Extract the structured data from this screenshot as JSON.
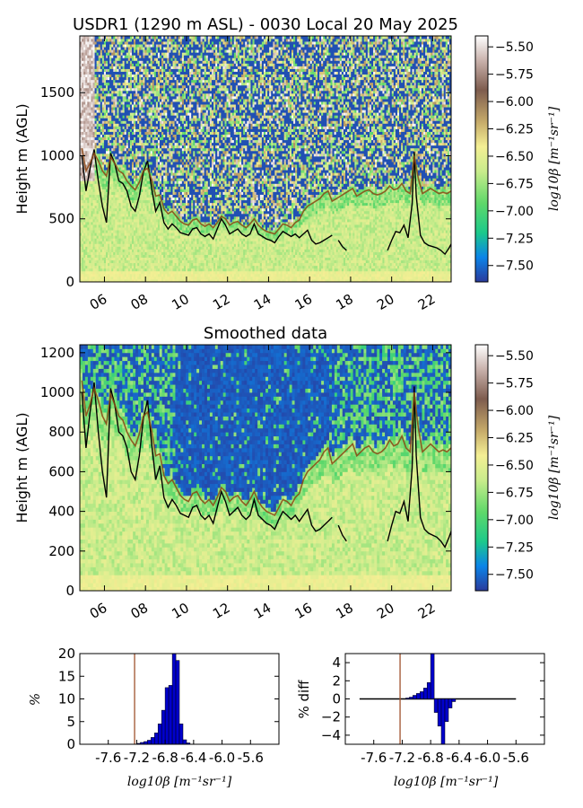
{
  "chart_data": [
    {
      "type": "heatmap",
      "title": "USDR1 (1290 m ASL) - 0030 Local 20 May 2025",
      "ylabel": "Height m (AGL)",
      "xlabel": "",
      "x_ticks": [
        "06",
        "08",
        "10",
        "12",
        "14",
        "16",
        "18",
        "20",
        "22"
      ],
      "x_tick_hours": [
        6,
        8,
        10,
        12,
        14,
        16,
        18,
        20,
        22
      ],
      "xlim": [
        4.8,
        22.9
      ],
      "ylim": [
        0,
        1950
      ],
      "y_ticks": [
        0,
        500,
        1000,
        1500
      ],
      "colorbar_label": "log10β [m⁻¹sr⁻¹]",
      "colorbar_ticks": [
        "−5.50",
        "−5.75",
        "−6.00",
        "−6.25",
        "−6.50",
        "−6.75",
        "−7.00",
        "−7.25",
        "−7.50"
      ],
      "clim": [
        -7.65,
        -5.4
      ],
      "series": [
        {
          "name": "",
          "color": "#000000",
          "x": [
            4.9,
            5.1,
            5.3,
            5.5,
            5.7,
            5.9,
            6.1,
            6.3,
            6.5,
            6.7,
            6.9,
            7.1,
            7.3,
            7.5,
            7.7,
            7.9,
            8.1,
            8.3,
            8.5,
            8.7,
            8.9,
            9.1,
            9.3,
            9.5,
            9.7,
            9.9,
            10.1,
            10.3,
            10.5,
            10.7,
            10.9,
            11.1,
            11.3,
            11.5,
            11.7,
            11.9,
            12.1,
            12.3,
            12.5,
            12.7,
            12.9,
            13.1,
            13.3,
            13.5,
            13.7,
            13.9,
            14.1,
            14.3,
            14.5,
            14.7,
            14.9,
            15.1,
            15.3,
            15.5,
            15.7,
            15.9,
            16.1,
            16.3,
            16.5,
            16.7,
            16.9,
            17.1
          ],
          "y": [
            1000,
            720,
            900,
            1050,
            800,
            600,
            470,
            1020,
            940,
            800,
            780,
            720,
            600,
            560,
            680,
            870,
            960,
            740,
            560,
            630,
            470,
            420,
            460,
            430,
            390,
            380,
            370,
            420,
            430,
            380,
            360,
            380,
            340,
            420,
            500,
            450,
            380,
            400,
            420,
            380,
            360,
            380,
            460,
            380,
            360,
            340,
            330,
            310,
            360,
            400,
            380,
            360,
            380,
            350,
            380,
            410,
            330,
            300,
            310,
            330,
            350,
            370
          ]
        },
        {
          "name": "",
          "color": "#000000",
          "x": [
            17.4,
            17.6,
            17.8
          ],
          "y": [
            330,
            280,
            250
          ]
        },
        {
          "name": "",
          "color": "#000000",
          "x": [
            19.8,
            20.0,
            20.2,
            20.4,
            20.6,
            20.8,
            21.0,
            21.1,
            21.2,
            21.4,
            21.6,
            21.8,
            22.0,
            22.2,
            22.4,
            22.6,
            22.8,
            23.0
          ],
          "y": [
            250,
            330,
            400,
            390,
            450,
            350,
            620,
            1030,
            680,
            370,
            310,
            290,
            280,
            270,
            250,
            220,
            270,
            330
          ]
        },
        {
          "name": "",
          "color": "#8b4513",
          "x": [
            4.9,
            5.1,
            5.3,
            5.5,
            5.7,
            5.9,
            6.1,
            6.3,
            6.5,
            6.7,
            6.9,
            7.1,
            7.3,
            7.5,
            7.7,
            7.9,
            8.1,
            8.3,
            8.5,
            8.7,
            8.9,
            9.1,
            9.3,
            9.5,
            9.7,
            9.9,
            10.1,
            10.3,
            10.5,
            10.7,
            10.9,
            11.1,
            11.3,
            11.5,
            11.7,
            11.9,
            12.1,
            12.3,
            12.5,
            12.7,
            12.9,
            13.1,
            13.3,
            13.5,
            13.7,
            13.9,
            14.1,
            14.3,
            14.5,
            14.7,
            14.9,
            15.1,
            15.3,
            15.5,
            15.7,
            15.9,
            16.1,
            16.3,
            16.5,
            16.7,
            16.9,
            17.1,
            17.3,
            17.5,
            17.7,
            17.9,
            18.1,
            18.3,
            18.5,
            18.7,
            18.9,
            19.1,
            19.3,
            19.5,
            19.7,
            19.9,
            20.1,
            20.3,
            20.5,
            20.7,
            20.9,
            21.1,
            21.3,
            21.5,
            21.7,
            21.9,
            22.1,
            22.3,
            22.5,
            22.7,
            22.9
          ],
          "y": [
            1060,
            880,
            940,
            1020,
            960,
            880,
            840,
            990,
            940,
            880,
            860,
            800,
            760,
            730,
            790,
            880,
            900,
            810,
            680,
            690,
            580,
            540,
            560,
            520,
            480,
            460,
            450,
            490,
            500,
            460,
            440,
            460,
            430,
            470,
            520,
            500,
            450,
            470,
            480,
            450,
            430,
            460,
            500,
            450,
            420,
            400,
            390,
            380,
            420,
            460,
            450,
            430,
            470,
            490,
            560,
            600,
            620,
            640,
            660,
            700,
            720,
            640,
            660,
            680,
            700,
            720,
            740,
            680,
            700,
            720,
            730,
            700,
            690,
            700,
            720,
            760,
            730,
            740,
            780,
            720,
            700,
            1000,
            820,
            700,
            720,
            740,
            720,
            700,
            710,
            700,
            720
          ]
        }
      ]
    },
    {
      "type": "heatmap",
      "title": "Smoothed data",
      "ylabel": "Height m (AGL)",
      "xlabel": "",
      "x_ticks": [
        "06",
        "08",
        "10",
        "12",
        "14",
        "16",
        "18",
        "20",
        "22"
      ],
      "x_tick_hours": [
        6,
        8,
        10,
        12,
        14,
        16,
        18,
        20,
        22
      ],
      "xlim": [
        4.8,
        22.9
      ],
      "ylim": [
        0,
        1240
      ],
      "y_ticks": [
        0,
        200,
        400,
        600,
        800,
        1000,
        1200
      ],
      "colorbar_label": "log10β [m⁻¹sr⁻¹]",
      "colorbar_ticks": [
        "−5.50",
        "−5.75",
        "−6.00",
        "−6.25",
        "−6.50",
        "−6.75",
        "−7.00",
        "−7.25",
        "−7.50"
      ],
      "clim": [
        -7.65,
        -5.4
      ]
    },
    {
      "type": "bar",
      "title": "",
      "xlabel": "log10β [m⁻¹sr⁻¹]",
      "ylabel": "%",
      "x_ticks": [
        "-7.6",
        "-7.2",
        "-6.8",
        "-6.4",
        "-6.0",
        "-5.6"
      ],
      "x_tick_values": [
        -7.6,
        -7.2,
        -6.8,
        -6.4,
        -6.0,
        -5.6
      ],
      "y_ticks": [
        "0",
        "5",
        "10",
        "15",
        "20"
      ],
      "xlim": [
        -8.0,
        -5.2
      ],
      "ylim": [
        0,
        20
      ],
      "marker_line": -7.23,
      "bin_width": 0.05,
      "bin_start": [
        -7.2,
        -7.15,
        -7.1,
        -7.05,
        -7.0,
        -6.95,
        -6.9,
        -6.85,
        -6.8,
        -6.75,
        -6.7,
        -6.65,
        -6.6,
        -6.55,
        -6.5
      ],
      "values": [
        0.2,
        0.4,
        0.6,
        0.9,
        1.5,
        2.5,
        4.5,
        7.5,
        12.5,
        13.0,
        20.5,
        18.5,
        4.5,
        1.0,
        0.3
      ]
    },
    {
      "type": "bar",
      "title": "",
      "xlabel": "log10β [m⁻¹sr⁻¹]",
      "ylabel": "% diff",
      "x_ticks": [
        "-7.6",
        "-7.2",
        "-6.8",
        "-6.4",
        "-6.0",
        "-5.6"
      ],
      "x_tick_values": [
        -7.6,
        -7.2,
        -6.8,
        -6.4,
        -6.0,
        -5.6
      ],
      "y_ticks": [
        "−4",
        "−2",
        "0",
        "2",
        "4"
      ],
      "xlim": [
        -8.0,
        -5.2
      ],
      "ylim": [
        -5,
        5
      ],
      "marker_line": -7.23,
      "bin_width": 0.05,
      "bin_start": [
        -7.15,
        -7.1,
        -7.05,
        -7.0,
        -6.95,
        -6.9,
        -6.85,
        -6.8,
        -6.75,
        -6.7,
        -6.65,
        -6.6,
        -6.55,
        -6.5
      ],
      "values": [
        0.1,
        0.2,
        0.4,
        0.6,
        0.8,
        1.2,
        1.8,
        5.0,
        -1.5,
        -3.0,
        -5.0,
        -2.5,
        -1.0,
        -0.3
      ]
    }
  ]
}
